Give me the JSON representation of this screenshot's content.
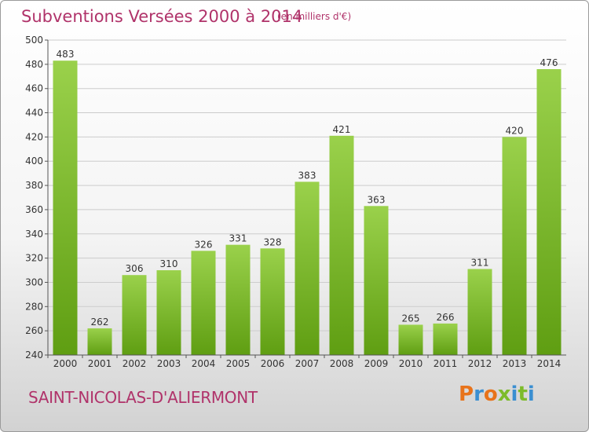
{
  "header": {
    "title": "Subventions Versées 2000 à 2014",
    "subtitle": "(en milliers d'€)"
  },
  "footer": {
    "town": "SAINT-NICOLAS-D'ALIERMONT",
    "logo_text": "Proxiti",
    "logo_colors": [
      "#e8731a",
      "#3b8fd1",
      "#e8731a",
      "#7dbb2a",
      "#3b8fd1",
      "#7dbb2a",
      "#3b8fd1"
    ]
  },
  "colors": {
    "accent": "#b0336a",
    "bar_top": "#9ad14b",
    "bar_bottom": "#5f9e12",
    "grid": "#cccccc"
  },
  "chart_data": {
    "type": "bar",
    "title": "Subventions Versées 2000 à 2014",
    "subtitle": "(en milliers d'€)",
    "categories": [
      "2000",
      "2001",
      "2002",
      "2003",
      "2004",
      "2005",
      "2006",
      "2007",
      "2008",
      "2009",
      "2010",
      "2011",
      "2012",
      "2013",
      "2014"
    ],
    "values": [
      483,
      262,
      306,
      310,
      326,
      331,
      328,
      383,
      421,
      363,
      265,
      266,
      311,
      420,
      476
    ],
    "ylim": [
      240,
      500
    ],
    "yticks": [
      240,
      260,
      280,
      300,
      320,
      340,
      360,
      380,
      400,
      420,
      440,
      460,
      480,
      500
    ],
    "grid": true,
    "data_labels": true
  }
}
